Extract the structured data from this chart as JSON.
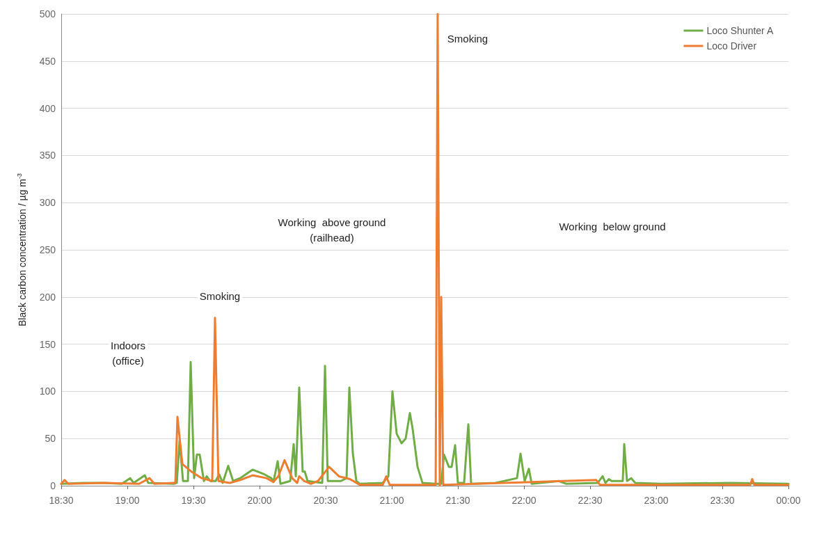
{
  "chart_data": {
    "type": "line",
    "ylabel": "Black carbon concentration / µg m$^{-3}$",
    "xlim": [
      18.5,
      24
    ],
    "xticks": [
      {
        "value": 18.5,
        "label": "18:30"
      },
      {
        "value": 19,
        "label": "19:00"
      },
      {
        "value": 19.5,
        "label": "19:30"
      },
      {
        "value": 20,
        "label": "20:00"
      },
      {
        "value": 20.5,
        "label": "20:30"
      },
      {
        "value": 21,
        "label": "21:00"
      },
      {
        "value": 21.5,
        "label": "21:30"
      },
      {
        "value": 22,
        "label": "22:00"
      },
      {
        "value": 22.5,
        "label": "22:30"
      },
      {
        "value": 23,
        "label": "23:00"
      },
      {
        "value": 23.5,
        "label": "23:30"
      },
      {
        "value": 24,
        "label": "00:00"
      }
    ],
    "ylim": [
      0,
      500
    ],
    "yticks": [
      0,
      50,
      100,
      150,
      200,
      250,
      300,
      350,
      400,
      450,
      500
    ],
    "grid": "y",
    "legend": "top right",
    "marker": "none",
    "line_style": "solid",
    "annotations": [
      "Indoors\n(office)",
      "Smoking",
      "Working  above ground\n(railhead)",
      "Smoking",
      "Working  below ground"
    ],
    "series": [
      {
        "name": "Loco Shunter A",
        "color": "#70ad47",
        "x": [
          18.5,
          18.668,
          18.826,
          18.958,
          19.021,
          19.047,
          19.132,
          19.158,
          19.353,
          19.374,
          19.395,
          19.421,
          19.458,
          19.479,
          19.505,
          19.526,
          19.547,
          19.579,
          19.6,
          19.626,
          19.668,
          19.695,
          19.721,
          19.763,
          19.8,
          19.853,
          19.947,
          20.037,
          20.089,
          20.105,
          20.137,
          20.158,
          20.232,
          20.258,
          20.274,
          20.3,
          20.326,
          20.342,
          20.363,
          20.474,
          20.495,
          20.516,
          20.616,
          20.658,
          20.679,
          20.705,
          20.732,
          20.758,
          20.932,
          20.974,
          21.005,
          21.037,
          21.074,
          21.105,
          21.137,
          21.158,
          21.195,
          21.232,
          21.337,
          21.374,
          21.395,
          21.432,
          21.453,
          21.479,
          21.5,
          21.547,
          21.579,
          21.6,
          21.784,
          21.947,
          21.974,
          22.005,
          22.037,
          22.058,
          22.263,
          22.321,
          22.558,
          22.595,
          22.616,
          22.642,
          22.663,
          22.747,
          22.758,
          22.779,
          22.811,
          22.842,
          23.037,
          23.563,
          24
        ],
        "values": [
          2,
          3,
          3,
          2,
          8,
          3,
          11,
          3,
          2,
          3,
          48,
          5,
          5,
          131,
          8,
          33,
          33,
          5,
          10,
          5,
          5,
          12,
          3,
          21,
          5,
          8,
          17,
          12,
          8,
          4,
          26,
          2,
          5,
          44,
          10,
          104,
          15,
          15,
          5,
          3,
          127,
          5,
          5,
          8,
          104,
          35,
          5,
          2,
          3,
          10,
          100,
          55,
          45,
          50,
          77,
          60,
          20,
          3,
          2,
          2,
          33,
          20,
          20,
          43,
          3,
          3,
          65,
          2,
          3,
          8,
          34,
          5,
          18,
          2,
          5,
          2,
          3,
          10,
          3,
          7,
          5,
          5,
          44,
          5,
          8,
          3,
          2,
          3,
          2
        ]
      },
      {
        "name": "Loco Driver",
        "color": "#ed7d31",
        "x": [
          18.5,
          18.526,
          18.553,
          18.826,
          19.089,
          19.168,
          19.205,
          19.353,
          19.363,
          19.379,
          19.416,
          19.484,
          19.563,
          19.642,
          19.663,
          19.689,
          19.774,
          19.853,
          19.947,
          20.053,
          20.105,
          20.142,
          20.189,
          20.247,
          20.284,
          20.3,
          20.337,
          20.389,
          20.442,
          20.526,
          20.6,
          20.684,
          20.758,
          20.932,
          20.958,
          20.984,
          21.332,
          21.347,
          21.363,
          21.374,
          21.389,
          22.547,
          22.574,
          23.711,
          23.726,
          23.742,
          24
        ],
        "values": [
          2,
          6,
          2,
          3,
          2,
          8,
          2,
          3,
          3,
          73,
          23,
          15,
          8,
          5,
          178,
          5,
          3,
          6,
          11,
          8,
          4,
          10,
          27,
          8,
          3,
          10,
          5,
          2,
          5,
          20,
          10,
          7,
          1,
          1,
          10,
          1,
          1,
          500,
          0,
          200,
          1,
          6,
          1,
          1,
          7,
          1,
          1
        ]
      }
    ]
  }
}
